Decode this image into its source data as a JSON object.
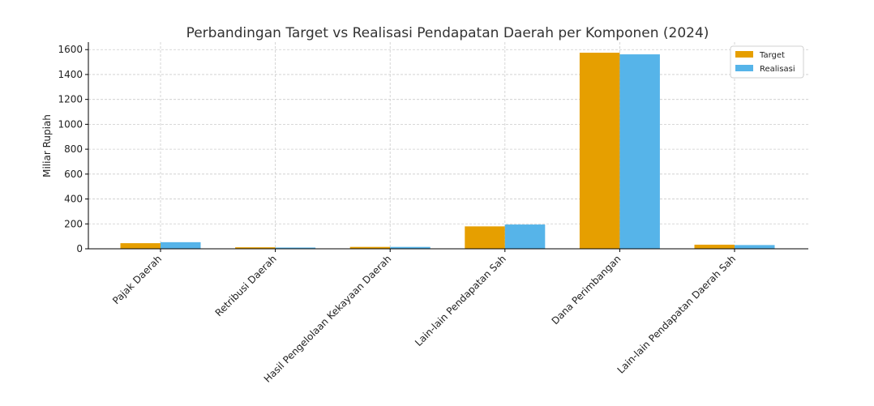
{
  "colors": {
    "target": "#E69F00",
    "realisasi": "#56B4E9",
    "grid": "#cccccc",
    "axis": "#000000"
  },
  "chart_data": {
    "type": "bar",
    "title": "Perbandingan Target vs Realisasi Pendapatan Daerah per Komponen (2024)",
    "xlabel": "",
    "ylabel": "Miliar Rupiah",
    "ylim": [
      0,
      1660
    ],
    "yticks": [
      0,
      200,
      400,
      600,
      800,
      1000,
      1200,
      1400,
      1600
    ],
    "grid": true,
    "legend_position": "top-right",
    "categories": [
      "Pajak Daerah",
      "Retribusi Daerah",
      "Hasil Pengelolaan Kekayaan Daerah",
      "Lain-lain Pendapatan Sah",
      "Dana Perimbangan",
      "Lain-lain Pendapatan Daerah Sah"
    ],
    "series": [
      {
        "name": "Target",
        "color": "#E69F00",
        "values": [
          45,
          12,
          15,
          180,
          1575,
          33
        ]
      },
      {
        "name": "Realisasi",
        "color": "#56B4E9",
        "values": [
          53,
          10,
          15,
          195,
          1562,
          30
        ]
      }
    ]
  }
}
